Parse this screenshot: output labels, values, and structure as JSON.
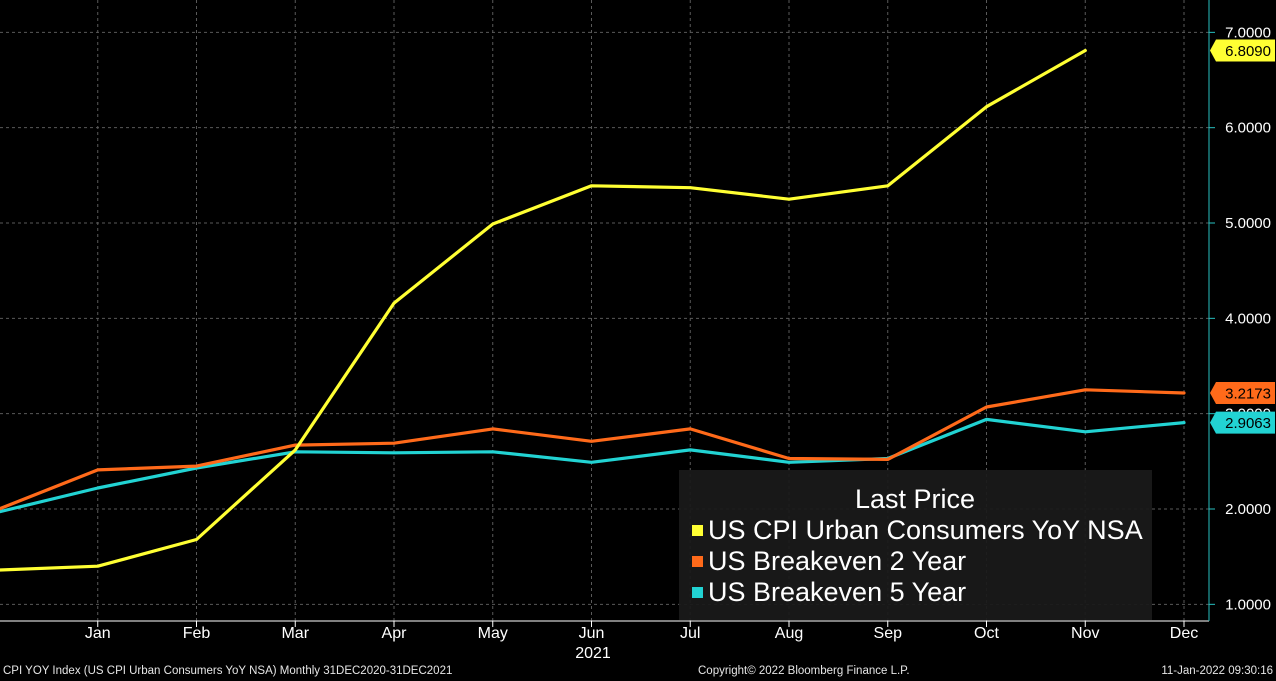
{
  "chart_data": {
    "type": "line",
    "categories": [
      "Dec",
      "Jan",
      "Feb",
      "Mar",
      "Apr",
      "May",
      "Jun",
      "Jul",
      "Aug",
      "Sep",
      "Oct",
      "Nov",
      "Dec"
    ],
    "tick_labels": [
      "Jan",
      "Feb",
      "Mar",
      "Apr",
      "May",
      "Jun",
      "Jul",
      "Aug",
      "Sep",
      "Oct",
      "Nov",
      "Dec"
    ],
    "year_label": "2021",
    "yticks": [
      "1.0000",
      "2.0000",
      "3.0000",
      "4.0000",
      "5.0000",
      "6.0000",
      "7.0000"
    ],
    "ylim": [
      0.85,
      7.25
    ],
    "grid": true,
    "series": [
      {
        "name": "US CPI Urban Consumers YoY NSA",
        "color": "#ffff33",
        "values": [
          1.36,
          1.4,
          1.68,
          2.62,
          4.16,
          4.99,
          5.39,
          5.37,
          5.25,
          5.39,
          6.22,
          6.81,
          null
        ],
        "last_label": "6.8090"
      },
      {
        "name": "US Breakeven 2 Year",
        "color": "#ff6a1a",
        "values": [
          2.0,
          2.41,
          2.45,
          2.67,
          2.69,
          2.84,
          2.71,
          2.84,
          2.53,
          2.52,
          3.07,
          3.25,
          3.2173
        ],
        "last_label": "3.2173"
      },
      {
        "name": "US Breakeven 5 Year",
        "color": "#22d3d3",
        "values": [
          1.97,
          2.22,
          2.43,
          2.6,
          2.59,
          2.6,
          2.49,
          2.62,
          2.49,
          2.53,
          2.94,
          2.81,
          2.9063
        ],
        "last_label": "2.9063"
      }
    ],
    "legend": {
      "title": "Last Price",
      "placement": "bottom-right"
    }
  },
  "footer": {
    "left": "CPI YOY Index (US CPI Urban Consumers YoY NSA)  Monthly 31DEC2020-31DEC2021",
    "center": "Copyright© 2022 Bloomberg Finance L.P.",
    "right": "11-Jan-2022 09:30:16"
  }
}
